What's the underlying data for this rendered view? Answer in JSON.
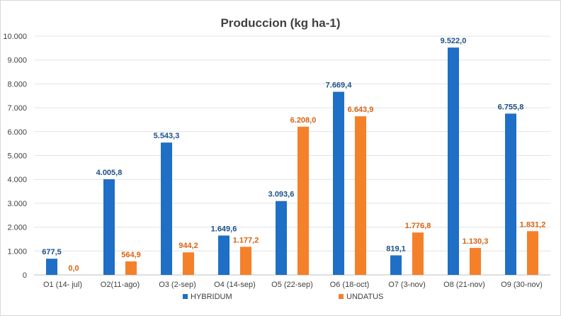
{
  "chart_data": {
    "type": "bar",
    "title": "Produccion (kg ha-1)",
    "xlabel": "",
    "ylabel": "",
    "categories": [
      "O1 (14- jul)",
      "O2(11-ago)",
      "O3 (2-sep)",
      "O4 (14-sep)",
      "O5 (22-sep)",
      "O6 (18-oct)",
      "O7 (3-nov)",
      "O8 (21-nov)",
      "O9 (30-nov)"
    ],
    "series": [
      {
        "name": "HYBRIDUM",
        "color": "#1f6fc6",
        "values": [
          677.5,
          4005.8,
          5543.3,
          1649.6,
          3093.6,
          7669.4,
          819.1,
          9522.0,
          6755.8
        ],
        "labels": [
          "677,5",
          "4.005,8",
          "5.543,3",
          "1.649,6",
          "3.093,6",
          "7.669,4",
          "819,1",
          "9.522,0",
          "6.755,8"
        ]
      },
      {
        "name": "UNDATUS",
        "color": "#f5802a",
        "values": [
          0.0,
          564.9,
          944.2,
          1177.2,
          6208.0,
          6643.9,
          1776.8,
          1130.3,
          1831.2
        ],
        "labels": [
          "0,0",
          "564,9",
          "944,2",
          "1.177,2",
          "6.208,0",
          "6.643,9",
          "1.776,8",
          "1.130,3",
          "1.831,2"
        ]
      }
    ],
    "ylim": [
      0,
      10000
    ],
    "yticks": [
      0,
      1000,
      2000,
      3000,
      4000,
      5000,
      6000,
      7000,
      8000,
      9000,
      10000
    ],
    "ytick_labels": [
      "0",
      "1.000",
      "2.000",
      "3.000",
      "4.000",
      "5.000",
      "6.000",
      "7.000",
      "8.000",
      "9.000",
      "10.000"
    ],
    "grid": true,
    "legend_position": "bottom"
  }
}
